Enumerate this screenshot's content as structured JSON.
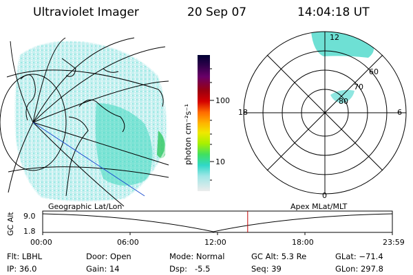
{
  "header": {
    "instrument": "Ultraviolet Imager",
    "date": "20 Sep 07",
    "time": "14:04:18 UT"
  },
  "colorbar": {
    "unit_label": "photon cm⁻²s⁻¹",
    "ticks": [
      "100",
      "10"
    ],
    "colors": [
      "#000033",
      "#2a0048",
      "#5a006a",
      "#8a0020",
      "#c80000",
      "#ff6000",
      "#ffb000",
      "#f0e800",
      "#b0f000",
      "#40e060",
      "#30d8c8",
      "#a0e8e8",
      "#e8e8e8"
    ]
  },
  "polar": {
    "mlt_labels": [
      "12",
      "18",
      "6",
      "0"
    ],
    "lat_labels": [
      "60",
      "70",
      "80"
    ]
  },
  "orbit_plot": {
    "left_label": "Geographic Lat/Lon",
    "right_label": "Apex MLat/MLT",
    "y_title": "GC Alt",
    "y_ticks": [
      "9.0",
      "1.8"
    ],
    "x_ticks": [
      "00:00",
      "06:00",
      "12:00",
      "18:00",
      "23:59"
    ],
    "marker_time_hours": 14.07
  },
  "info": {
    "flt": "Flt: LBHL",
    "ip": "IP: 36.0",
    "door": "Door: Open",
    "gain": "Gain: 14",
    "mode": "Mode: Normal",
    "dsp": "Dsp:   -5.5",
    "gcalt": "GC Alt: 5.3 Re",
    "seq": "Seq: 39",
    "glat": "GLat: −71.4",
    "glon": "GLon: 297.8"
  }
}
